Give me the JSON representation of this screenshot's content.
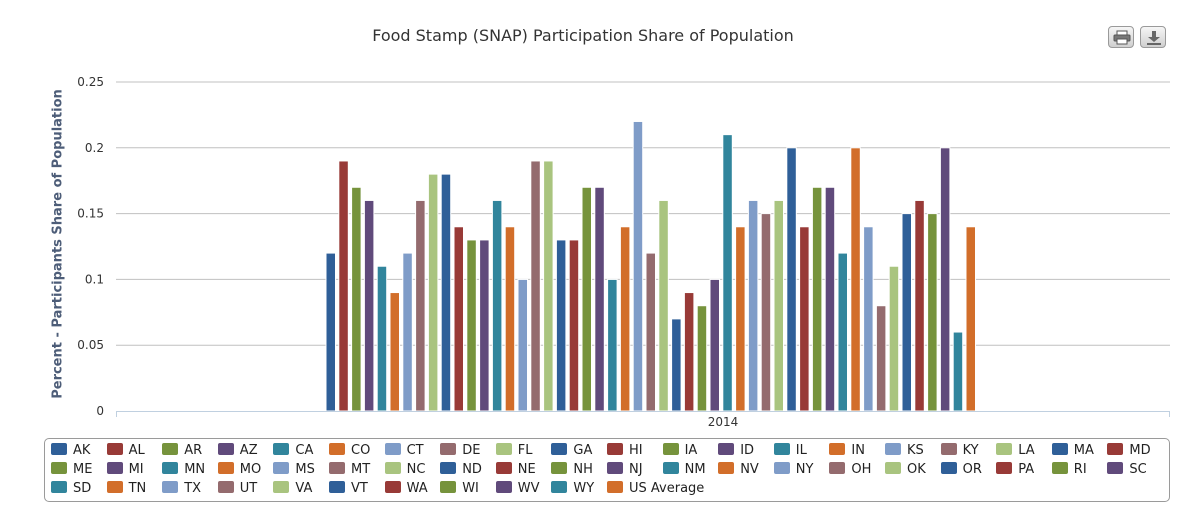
{
  "toolbar": {
    "print_icon": "print-icon",
    "download_icon": "download-icon"
  },
  "chart_data": {
    "type": "bar",
    "title": "Food Stamp (SNAP) Participation Share of Population",
    "ylabel": "Percent - Participants Share of Population",
    "xlabel": "",
    "categories": [
      "2014"
    ],
    "ylim": [
      0,
      0.25
    ],
    "yticks": [
      "0",
      "0.05",
      "0.1",
      "0.15",
      "0.2",
      "0.25"
    ],
    "grid": true,
    "legend_position": "bottom",
    "series": [
      {
        "name": "AK",
        "values": [
          0.12
        ],
        "color": "#2f5f98"
      },
      {
        "name": "AL",
        "values": [
          0.19
        ],
        "color": "#983a37"
      },
      {
        "name": "AR",
        "values": [
          0.17
        ],
        "color": "#76933c"
      },
      {
        "name": "AZ",
        "values": [
          0.16
        ],
        "color": "#604a7b"
      },
      {
        "name": "CA",
        "values": [
          0.11
        ],
        "color": "#31859c"
      },
      {
        "name": "CO",
        "values": [
          0.09
        ],
        "color": "#d26e2a"
      },
      {
        "name": "CT",
        "values": [
          0.12
        ],
        "color": "#7f9cc8"
      },
      {
        "name": "DE",
        "values": [
          0.16
        ],
        "color": "#946b6e"
      },
      {
        "name": "FL",
        "values": [
          0.18
        ],
        "color": "#a9c47f"
      },
      {
        "name": "GA",
        "values": [
          0.18
        ],
        "color": "#2f5f98"
      },
      {
        "name": "HI",
        "values": [
          0.14
        ],
        "color": "#983a37"
      },
      {
        "name": "IA",
        "values": [
          0.13
        ],
        "color": "#76933c"
      },
      {
        "name": "ID",
        "values": [
          0.13
        ],
        "color": "#604a7b"
      },
      {
        "name": "IL",
        "values": [
          0.16
        ],
        "color": "#31859c"
      },
      {
        "name": "IN",
        "values": [
          0.14
        ],
        "color": "#d26e2a"
      },
      {
        "name": "KS",
        "values": [
          0.1
        ],
        "color": "#7f9cc8"
      },
      {
        "name": "KY",
        "values": [
          0.19
        ],
        "color": "#946b6e"
      },
      {
        "name": "LA",
        "values": [
          0.19
        ],
        "color": "#a9c47f"
      },
      {
        "name": "MA",
        "values": [
          0.13
        ],
        "color": "#2f5f98"
      },
      {
        "name": "MD",
        "values": [
          0.13
        ],
        "color": "#983a37"
      },
      {
        "name": "ME",
        "values": [
          0.17
        ],
        "color": "#76933c"
      },
      {
        "name": "MI",
        "values": [
          0.17
        ],
        "color": "#604a7b"
      },
      {
        "name": "MN",
        "values": [
          0.1
        ],
        "color": "#31859c"
      },
      {
        "name": "MO",
        "values": [
          0.14
        ],
        "color": "#d26e2a"
      },
      {
        "name": "MS",
        "values": [
          0.22
        ],
        "color": "#7f9cc8"
      },
      {
        "name": "MT",
        "values": [
          0.12
        ],
        "color": "#946b6e"
      },
      {
        "name": "NC",
        "values": [
          0.16
        ],
        "color": "#a9c47f"
      },
      {
        "name": "ND",
        "values": [
          0.07
        ],
        "color": "#2f5f98"
      },
      {
        "name": "NE",
        "values": [
          0.09
        ],
        "color": "#983a37"
      },
      {
        "name": "NH",
        "values": [
          0.08
        ],
        "color": "#76933c"
      },
      {
        "name": "NJ",
        "values": [
          0.1
        ],
        "color": "#604a7b"
      },
      {
        "name": "NM",
        "values": [
          0.21
        ],
        "color": "#31859c"
      },
      {
        "name": "NV",
        "values": [
          0.14
        ],
        "color": "#d26e2a"
      },
      {
        "name": "NY",
        "values": [
          0.16
        ],
        "color": "#7f9cc8"
      },
      {
        "name": "OH",
        "values": [
          0.15
        ],
        "color": "#946b6e"
      },
      {
        "name": "OK",
        "values": [
          0.16
        ],
        "color": "#a9c47f"
      },
      {
        "name": "OR",
        "values": [
          0.2
        ],
        "color": "#2f5f98"
      },
      {
        "name": "PA",
        "values": [
          0.14
        ],
        "color": "#983a37"
      },
      {
        "name": "RI",
        "values": [
          0.17
        ],
        "color": "#76933c"
      },
      {
        "name": "SC",
        "values": [
          0.17
        ],
        "color": "#604a7b"
      },
      {
        "name": "SD",
        "values": [
          0.12
        ],
        "color": "#31859c"
      },
      {
        "name": "TN",
        "values": [
          0.2
        ],
        "color": "#d26e2a"
      },
      {
        "name": "TX",
        "values": [
          0.14
        ],
        "color": "#7f9cc8"
      },
      {
        "name": "UT",
        "values": [
          0.08
        ],
        "color": "#946b6e"
      },
      {
        "name": "VA",
        "values": [
          0.11
        ],
        "color": "#a9c47f"
      },
      {
        "name": "VT",
        "values": [
          0.15
        ],
        "color": "#2f5f98"
      },
      {
        "name": "WA",
        "values": [
          0.16
        ],
        "color": "#983a37"
      },
      {
        "name": "WI",
        "values": [
          0.15
        ],
        "color": "#76933c"
      },
      {
        "name": "WV",
        "values": [
          0.2
        ],
        "color": "#604a7b"
      },
      {
        "name": "WY",
        "values": [
          0.06
        ],
        "color": "#31859c"
      },
      {
        "name": "US Average",
        "values": [
          0.14
        ],
        "color": "#d26e2a"
      }
    ]
  }
}
